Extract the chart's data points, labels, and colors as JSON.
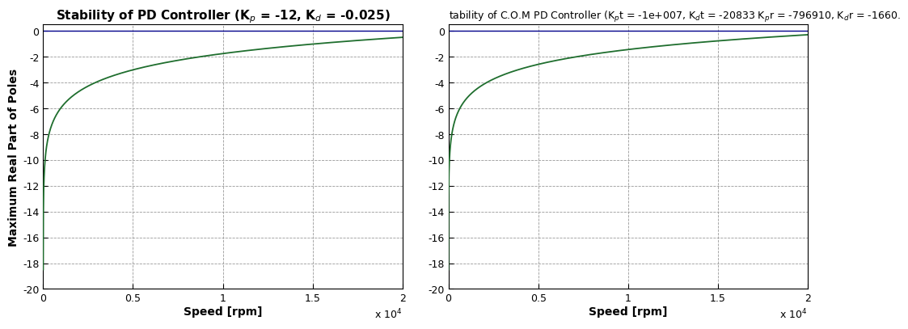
{
  "plot1_title": "Stability of PD Controller (K$_p$ = -12, K$_d$ = -0.025)",
  "plot2_title": "tability of C.O.M PD Controller (K$_p$t = -1e+007, K$_d$t = -20833 K$_p$r = -796910, K$_d$r = -1660.",
  "xlabel": "Speed [rpm]",
  "ylabel": "Maximum Real Part of Poles",
  "xlim": [
    0,
    20000
  ],
  "ylim": [
    -20,
    0.5
  ],
  "ytick_values": [
    0,
    -2,
    -4,
    -6,
    -8,
    -10,
    -12,
    -14,
    -16,
    -18,
    -20
  ],
  "xtick_values": [
    0,
    5000,
    10000,
    15000,
    20000
  ],
  "xtick_labels": [
    "0",
    "0.5",
    "1",
    "1.5",
    "2"
  ],
  "line_color": "#1f6e2e",
  "hline_color": "#00008B",
  "bg_color": "#ffffff",
  "curve1_x0": 0,
  "curve1_y_start": -18.5,
  "curve1_scale": 3500,
  "curve2_y_start": -18.5,
  "curve2_scale": 2200,
  "title1_fontsize": 11,
  "title2_fontsize": 9,
  "label_fontsize": 10,
  "tick_fontsize": 9
}
